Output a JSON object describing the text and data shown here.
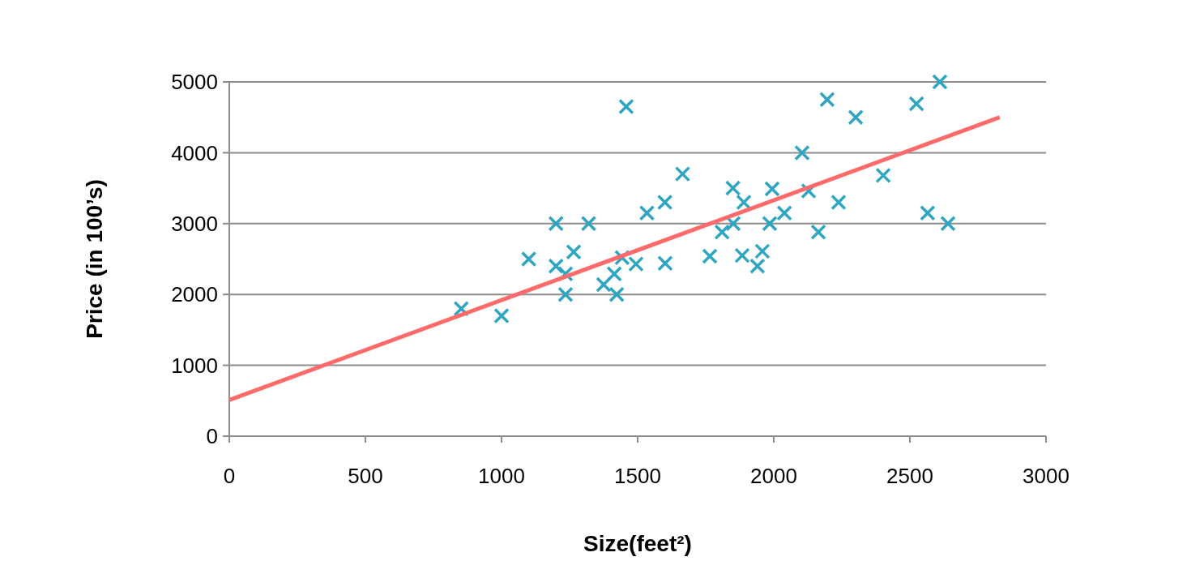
{
  "chart_data": {
    "type": "scatter",
    "xlabel": "Size(feet²)",
    "ylabel": "Price (in 100’s)",
    "xlim": [
      0,
      3000
    ],
    "ylim": [
      0,
      5000
    ],
    "xticks": [
      0,
      500,
      1000,
      1500,
      2000,
      2500,
      3000
    ],
    "yticks": [
      0,
      1000,
      2000,
      3000,
      4000,
      5000
    ],
    "grid": "y",
    "series": [
      {
        "marker": "cross",
        "color": "#2ea6c2",
        "x": [
          852,
          1000,
          1100,
          1200,
          1200,
          1235,
          1265,
          1235,
          1320,
          1375,
          1423,
          1414,
          1443,
          1494,
          1601,
          1458,
          1534,
          1600,
          1665,
          1850,
          1890,
          1994,
          2039,
          2128,
          2238,
          2104,
          1851,
          1810,
          1985,
          2164,
          1765,
          1884,
          1958,
          1940,
          2196,
          2301,
          2524,
          2610,
          2402,
          2565,
          2640
        ],
        "values": [
          1800,
          1700,
          2500,
          3000,
          2400,
          2000,
          2600,
          2290,
          3000,
          2140,
          2000,
          2290,
          2520,
          2430,
          2440,
          4650,
          3150,
          3300,
          3700,
          3500,
          3300,
          3490,
          3150,
          3460,
          3300,
          4000,
          3000,
          2880,
          3000,
          2880,
          2540,
          2550,
          2610,
          2400,
          4750,
          4500,
          4690,
          5000,
          3680,
          3150,
          3000
        ]
      },
      {
        "type": "line",
        "color": "#ff6b6b",
        "x": [
          0,
          2830
        ],
        "values": [
          510,
          4500
        ]
      }
    ]
  }
}
